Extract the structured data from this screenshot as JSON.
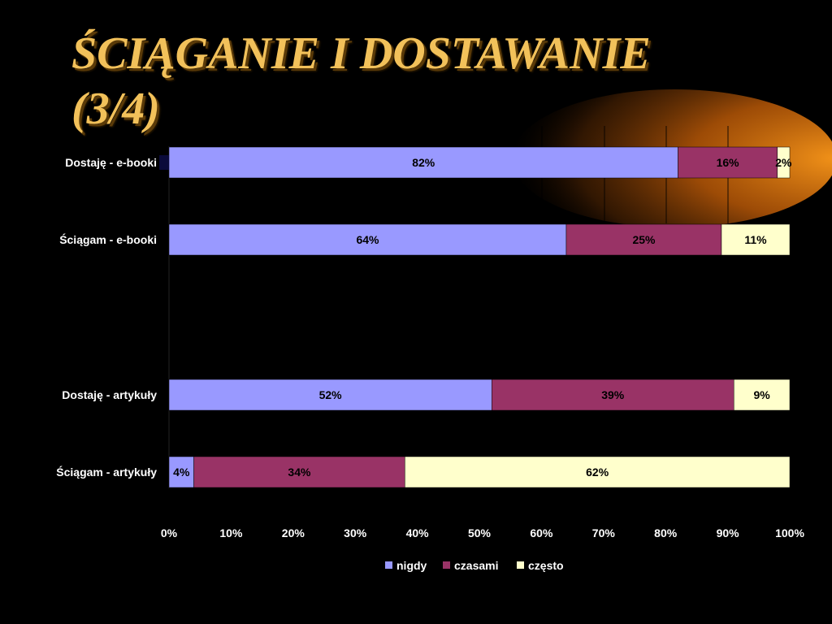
{
  "title": "ŚCIĄGANIE I DOSTAWANIE (3/4)",
  "chart_data": {
    "type": "bar",
    "orientation": "horizontal",
    "stacked": "percent",
    "categories": [
      "Dostaję - e-booki",
      "Ściągam - e-booki",
      "Dostaję - artykuły",
      "Ściągam - artykuły"
    ],
    "series": [
      {
        "name": "nigdy",
        "color": "#9999ff",
        "values": [
          82,
          64,
          52,
          4
        ],
        "labels": [
          "82%",
          "64%",
          "52%",
          "4%"
        ]
      },
      {
        "name": "czasami",
        "color": "#993366",
        "values": [
          16,
          25,
          39,
          34
        ],
        "labels": [
          "16%",
          "25%",
          "39%",
          "34%"
        ]
      },
      {
        "name": "często",
        "color": "#ffffcc",
        "values": [
          2,
          11,
          9,
          62
        ],
        "labels": [
          "2%",
          "11%",
          "9%",
          "62%"
        ]
      }
    ],
    "xticks": [
      "0%",
      "10%",
      "20%",
      "30%",
      "40%",
      "50%",
      "60%",
      "70%",
      "80%",
      "90%",
      "100%"
    ],
    "xlim": [
      0,
      100
    ],
    "legend_position": "bottom",
    "grid": false
  }
}
